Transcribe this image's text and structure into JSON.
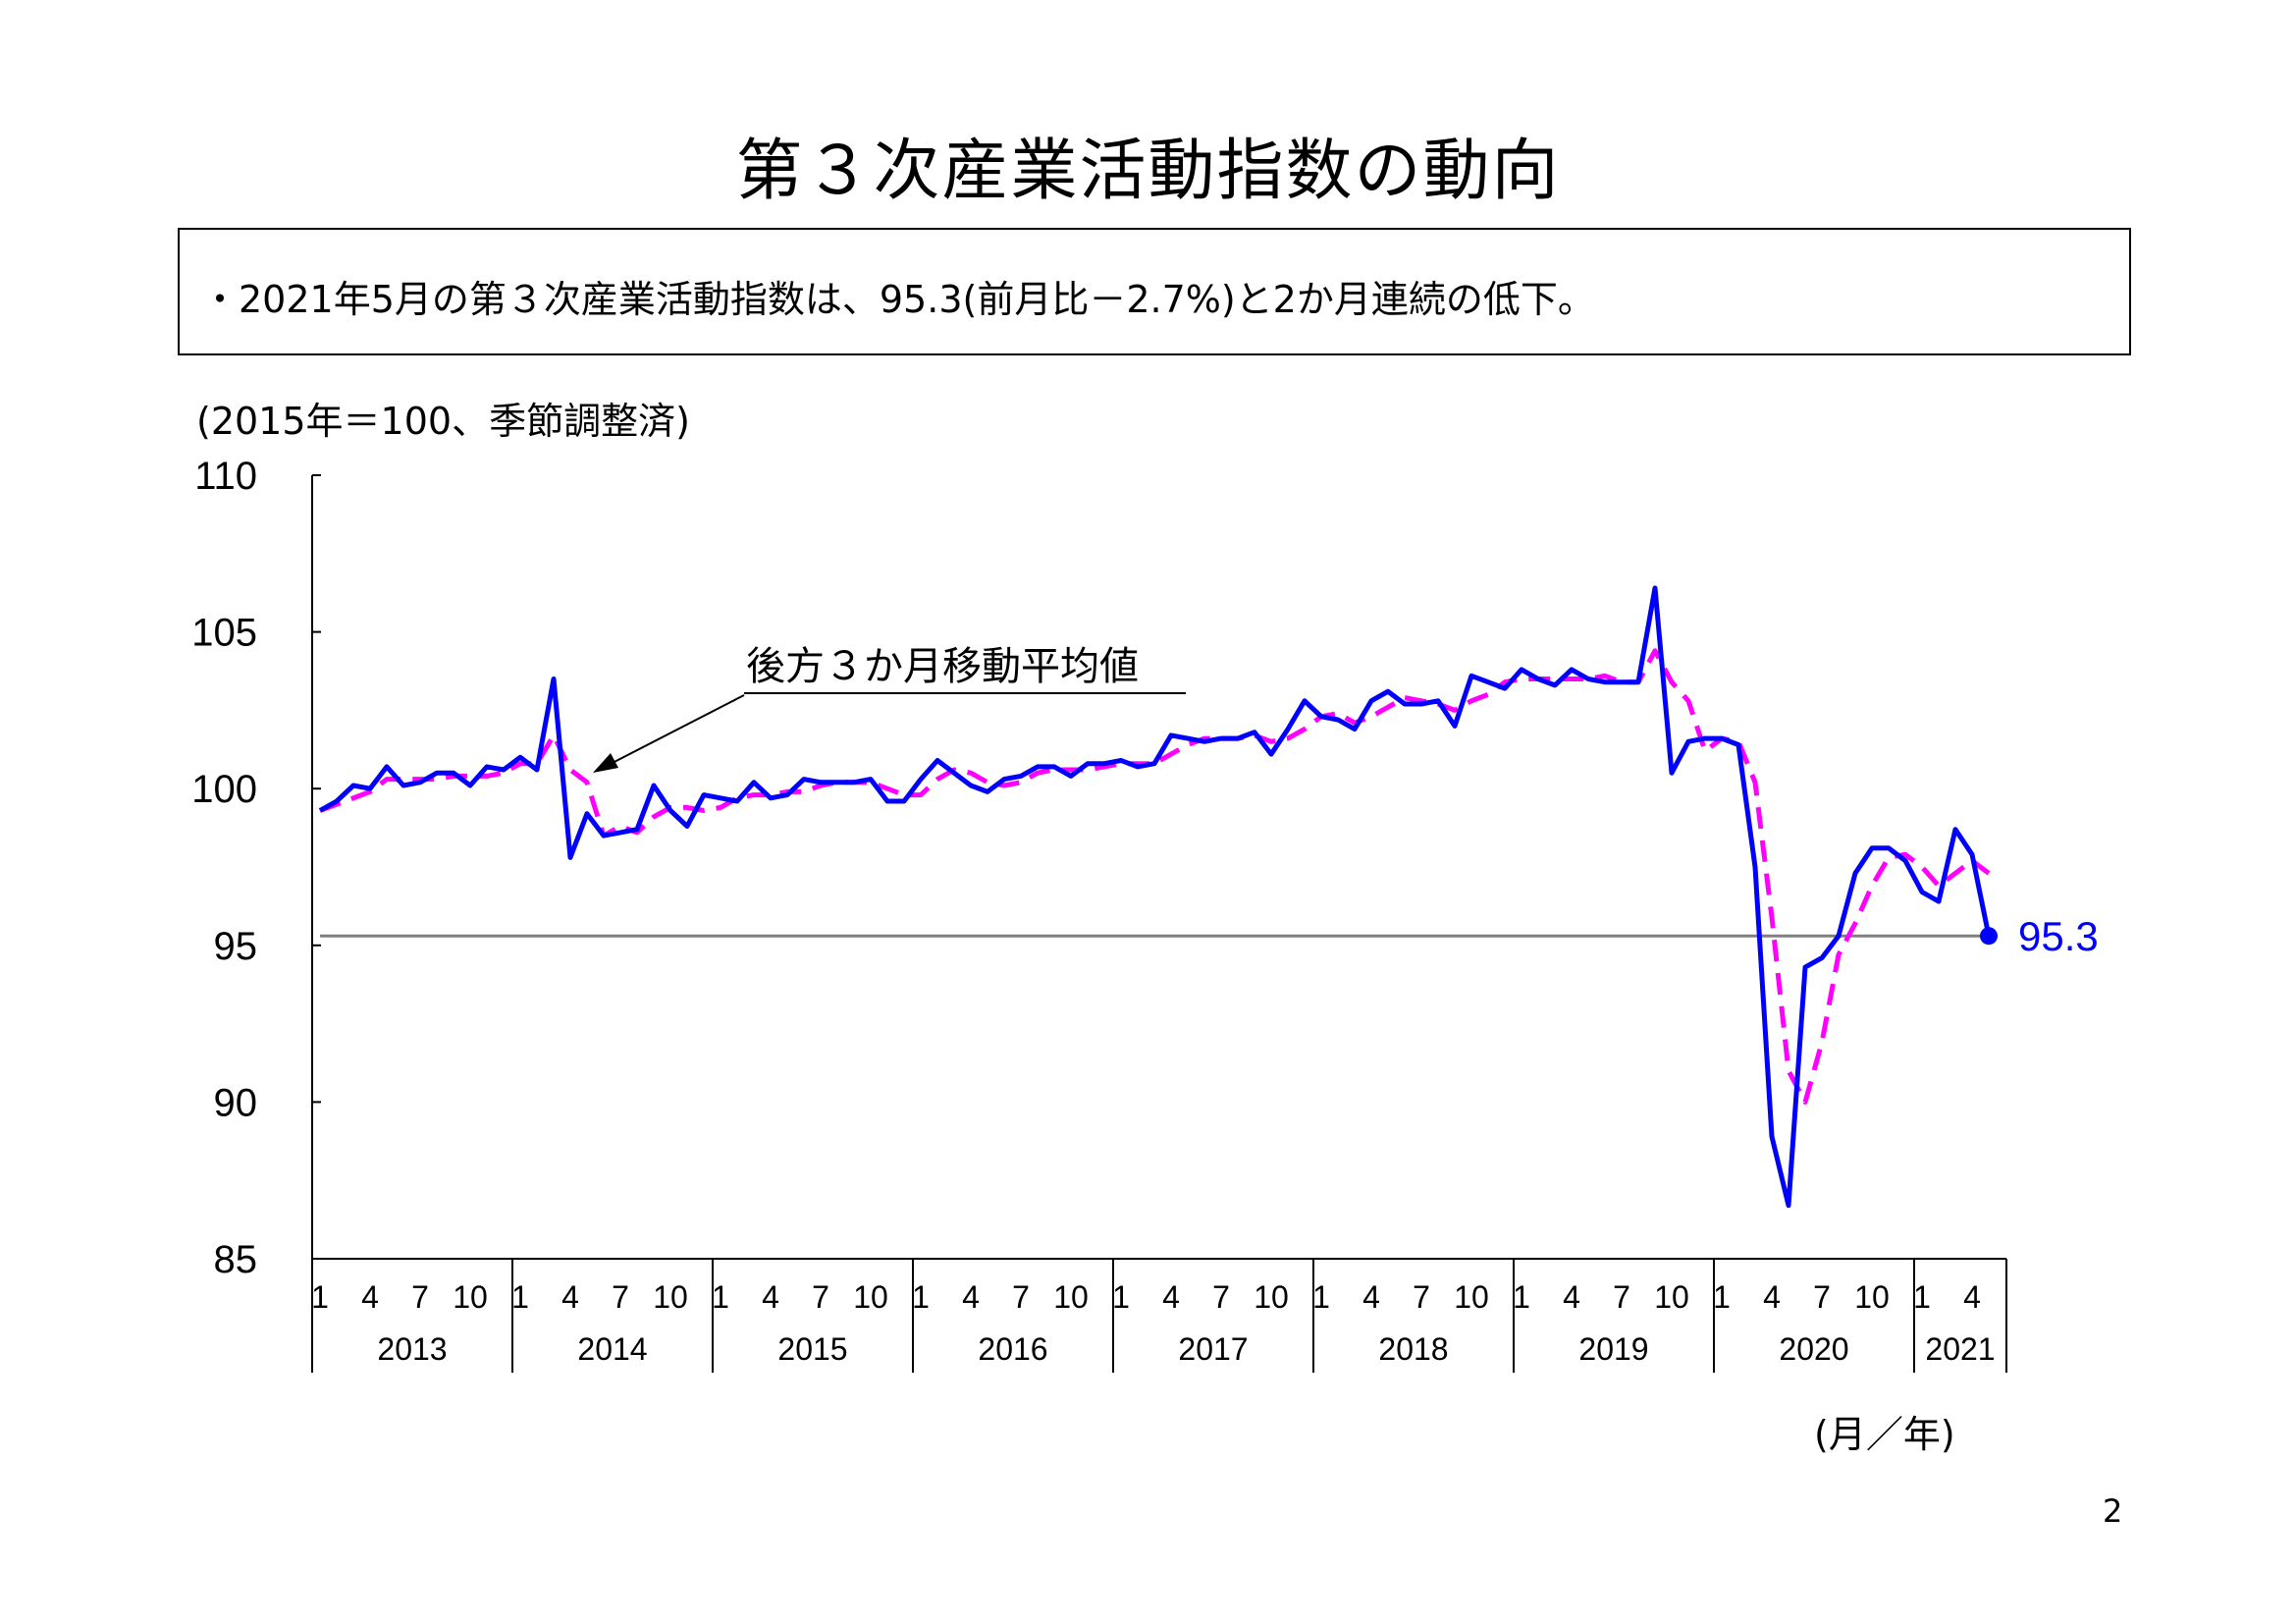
{
  "title": "第３次産業活動指数の動向",
  "summary": "・2021年5月の第３次産業活動指数は、95.3(前月比－2.7%)と2か月連続の低下。",
  "unit_note": "(2015年＝100、季節調整済)",
  "x_axis_unit": "(月／年)",
  "page_number": "2",
  "colors": {
    "index_line": "#0000ff",
    "moving_average": "#ff00ff",
    "reference_line": "#808080",
    "axis": "#000000"
  },
  "chart_data": {
    "type": "line",
    "title": "",
    "xlabel": "(月／年)",
    "ylabel": "(2015年＝100、季節調整済)",
    "ylim": [
      85,
      110
    ],
    "yticks": [
      85,
      90,
      95,
      100,
      105,
      110
    ],
    "month_ticks": [
      "1",
      "4",
      "7",
      "10"
    ],
    "years": [
      "2013",
      "2014",
      "2015",
      "2016",
      "2017",
      "2018",
      "2019",
      "2020",
      "2021"
    ],
    "months_in_last_year": 5,
    "reference_value": 95.3,
    "latest_point": {
      "label": "95.3",
      "value": 95.3
    },
    "annotation": {
      "text": "後方３か月移動平均値"
    },
    "series": [
      {
        "name": "",
        "style": "solid",
        "values": [
          99.3,
          99.6,
          100.1,
          100.0,
          100.7,
          100.1,
          100.2,
          100.5,
          100.5,
          100.1,
          100.7,
          100.6,
          101.0,
          100.6,
          103.5,
          97.8,
          99.2,
          98.5,
          98.6,
          98.7,
          100.1,
          99.3,
          98.8,
          99.8,
          99.7,
          99.6,
          100.2,
          99.7,
          99.8,
          100.3,
          100.2,
          100.2,
          100.2,
          100.3,
          99.6,
          99.6,
          100.3,
          100.9,
          100.5,
          100.1,
          99.9,
          100.3,
          100.4,
          100.7,
          100.7,
          100.4,
          100.8,
          100.8,
          100.9,
          100.7,
          100.8,
          101.7,
          101.6,
          101.5,
          101.6,
          101.6,
          101.8,
          101.1,
          101.9,
          102.8,
          102.3,
          102.2,
          101.9,
          102.8,
          103.1,
          102.7,
          102.7,
          102.8,
          102.0,
          103.6,
          103.4,
          103.2,
          103.8,
          103.5,
          103.3,
          103.8,
          103.5,
          103.4,
          103.4,
          103.4,
          106.4,
          100.5,
          101.5,
          101.6,
          101.6,
          101.4,
          97.5,
          88.9,
          86.7,
          94.3,
          94.6,
          95.3,
          97.3,
          98.1,
          98.1,
          97.7,
          96.7,
          96.4,
          98.7,
          97.9,
          95.3
        ]
      },
      {
        "name": "後方３か月移動平均値",
        "style": "dashed",
        "values": [
          99.3,
          99.5,
          99.7,
          99.9,
          100.3,
          100.3,
          100.3,
          100.3,
          100.4,
          100.4,
          100.4,
          100.5,
          100.8,
          100.8,
          101.7,
          100.6,
          100.2,
          98.5,
          98.8,
          98.6,
          99.1,
          99.4,
          99.4,
          99.3,
          99.4,
          99.7,
          99.8,
          99.8,
          99.9,
          99.9,
          100.1,
          100.2,
          100.2,
          100.2,
          100.0,
          99.8,
          99.8,
          100.3,
          100.6,
          100.5,
          100.2,
          100.1,
          100.2,
          100.5,
          100.6,
          100.6,
          100.6,
          100.7,
          100.8,
          100.8,
          100.8,
          101.1,
          101.4,
          101.6,
          101.6,
          101.6,
          101.7,
          101.5,
          101.6,
          101.9,
          102.3,
          102.4,
          102.1,
          102.3,
          102.6,
          102.9,
          102.8,
          102.7,
          102.5,
          102.8,
          103.0,
          103.4,
          103.5,
          103.5,
          103.5,
          103.5,
          103.5,
          103.6,
          103.4,
          103.4,
          104.4,
          103.4,
          102.8,
          101.2,
          101.6,
          101.5,
          100.2,
          95.9,
          91.0,
          90.0,
          91.9,
          94.7,
          95.7,
          96.9,
          97.8,
          97.9,
          97.5,
          96.9,
          97.3,
          97.7,
          97.3
        ]
      }
    ]
  }
}
